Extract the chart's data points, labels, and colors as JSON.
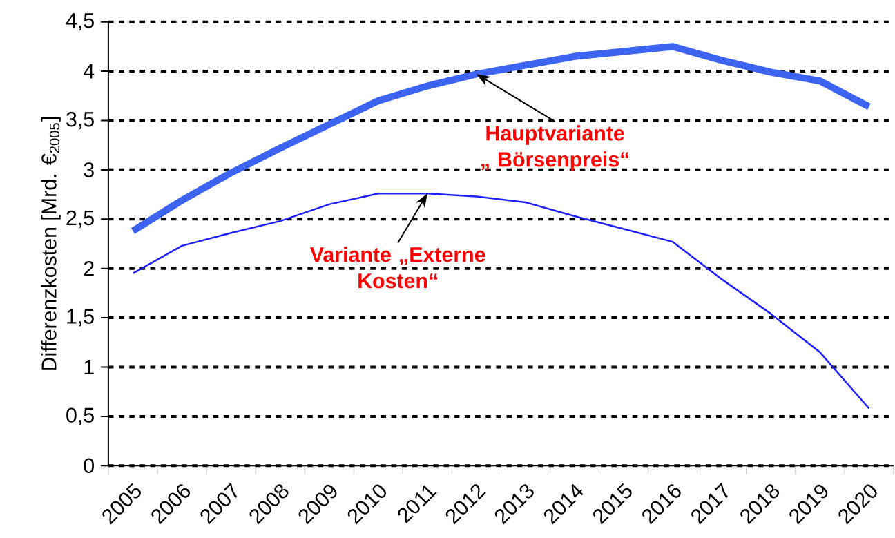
{
  "chart_data": {
    "type": "line",
    "ylabel": "Differenzkosten [Mrd. €$_{2005}$]",
    "categories": [
      "2005",
      "2006",
      "2007",
      "2008",
      "2009",
      "2010",
      "2011",
      "2012",
      "2013",
      "2014",
      "2015",
      "2016",
      "2017",
      "2018",
      "2019",
      "2020"
    ],
    "series": [
      {
        "color": "#3c64f0",
        "values": [
          2.38,
          2.69,
          2.97,
          3.22,
          3.46,
          3.7,
          3.85,
          3.97,
          4.06,
          4.15,
          4.2,
          4.25,
          4.11,
          3.99,
          3.9,
          3.64
        ]
      },
      {
        "color": "#2020ff",
        "values": [
          1.95,
          2.23,
          2.36,
          2.48,
          2.65,
          2.76,
          2.76,
          2.73,
          2.67,
          2.53,
          2.4,
          2.27,
          1.89,
          1.54,
          1.15,
          0.58
        ]
      }
    ],
    "ylim": [
      0,
      4.5
    ],
    "yticks": [
      0,
      {
        "value": 0.5,
        "label": "0,5"
      },
      1,
      {
        "value": 1.5,
        "label": "1,5"
      },
      2,
      {
        "value": 2.5,
        "label": "2,5"
      },
      3,
      {
        "value": 3.5,
        "label": "3,5"
      },
      4,
      {
        "value": 4.5,
        "label": "4,5"
      }
    ],
    "grid": "y",
    "marker": "none",
    "line_style": "solid",
    "annotations": [
      {
        "text": "Hauptvariante „ Börsenpreis“",
        "x": "2012",
        "y": 3.97
      },
      {
        "text": "Variante „Externe Kosten“",
        "x": "2011",
        "y": 2.76
      }
    ]
  }
}
